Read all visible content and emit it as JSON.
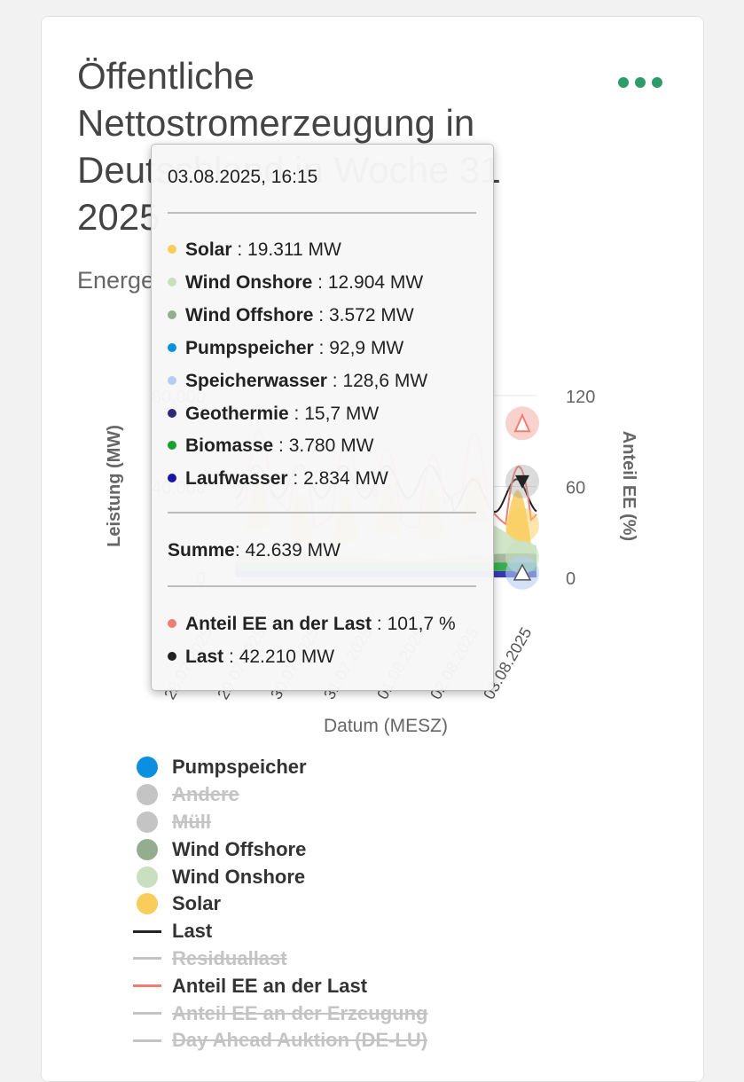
{
  "header": {
    "title": "Öffentliche Nettostromerzeugung in Deutschland in Woche 31 2025",
    "subtitle": "Energe"
  },
  "colors": {
    "menu": "#2e9b6a",
    "solar": "#f9cd5c",
    "wind_onshore": "#c8e0c0",
    "wind_offshore": "#95ad8f",
    "pumpspeicher": "#0b8fe0",
    "speicherwasser": "#b5cdf5",
    "geothermie": "#2d2a7a",
    "biomasse": "#16a02f",
    "laufwasser": "#1616a8",
    "last": "#222222",
    "anteil": "#f07d70",
    "disabled": "#c4c4c4"
  },
  "chart_data": {
    "type": "area",
    "xlabel": "Datum (MESZ)",
    "ylabel": "Leistung (MW)",
    "y2label": "Anteil EE (%)",
    "ylim": [
      0,
      80000
    ],
    "y2lim": [
      0,
      120
    ],
    "yticks": [
      "0",
      "40.000",
      "80.000"
    ],
    "y2ticks": [
      "0",
      "60",
      "120"
    ],
    "xticks": [
      "28.07.2025",
      "29.07.2025",
      "30.07.2025",
      "31.07.2025",
      "01.08.2025",
      "02.08.2025",
      "03.08.2025"
    ],
    "grid": true,
    "legend_position": "bottom",
    "hover": {
      "timestamp": "03.08.2025, 16:15",
      "series": [
        {
          "name": "Solar",
          "value": "19.311 MW",
          "color": "#f9cd5c"
        },
        {
          "name": "Wind Onshore",
          "value": "12.904 MW",
          "color": "#c8e0c0"
        },
        {
          "name": "Wind Offshore",
          "value": "3.572 MW",
          "color": "#95ad8f"
        },
        {
          "name": "Pumpspeicher",
          "value": "92,9 MW",
          "color": "#0b8fe0"
        },
        {
          "name": "Speicherwasser",
          "value": "128,6 MW",
          "color": "#b5cdf5"
        },
        {
          "name": "Geothermie",
          "value": "15,7 MW",
          "color": "#2d2a7a"
        },
        {
          "name": "Biomasse",
          "value": "3.780 MW",
          "color": "#16a02f"
        },
        {
          "name": "Laufwasser",
          "value": "2.834 MW",
          "color": "#1616a8"
        }
      ],
      "sum_label": "Summe",
      "sum_value": "42.639 MW",
      "extra": [
        {
          "name": "Anteil EE an der Last",
          "value": "101,7 %",
          "color": "#f07d70"
        },
        {
          "name": "Last",
          "value": "42.210 MW",
          "color": "#222222"
        }
      ]
    },
    "legend": [
      {
        "name": "Pumpspeicher",
        "kind": "dot",
        "color": "#0b8fe0",
        "enabled": true
      },
      {
        "name": "Andere",
        "kind": "dot",
        "color": "#c4c4c4",
        "enabled": false
      },
      {
        "name": "Müll",
        "kind": "dot",
        "color": "#c4c4c4",
        "enabled": false
      },
      {
        "name": "Wind Offshore",
        "kind": "dot",
        "color": "#95ad8f",
        "enabled": true
      },
      {
        "name": "Wind Onshore",
        "kind": "dot",
        "color": "#c8e0c0",
        "enabled": true
      },
      {
        "name": "Solar",
        "kind": "dot",
        "color": "#f9cd5c",
        "enabled": true
      },
      {
        "name": "Last",
        "kind": "line",
        "color": "#222222",
        "enabled": true
      },
      {
        "name": "Residuallast",
        "kind": "line",
        "color": "#c4c4c4",
        "enabled": false
      },
      {
        "name": "Anteil EE an der Last",
        "kind": "line",
        "color": "#f07d70",
        "enabled": true
      },
      {
        "name": "Anteil EE an der Erzeugung",
        "kind": "line",
        "color": "#c4c4c4",
        "enabled": false
      },
      {
        "name": "Day Ahead Auktion (DE-LU)",
        "kind": "line",
        "color": "#c4c4c4",
        "enabled": false
      }
    ]
  }
}
